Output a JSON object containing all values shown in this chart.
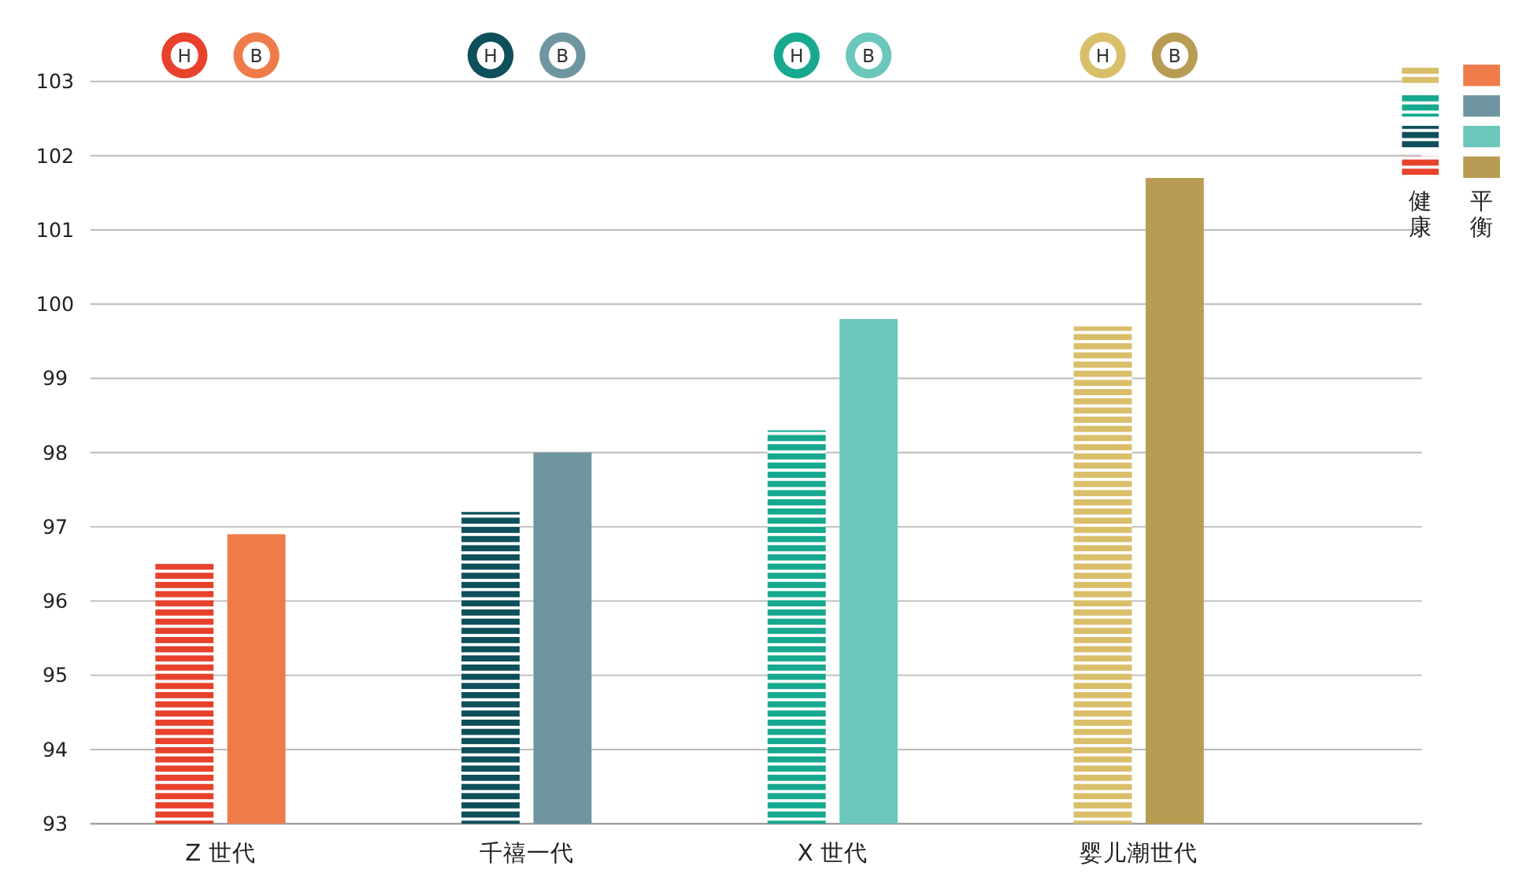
{
  "chart_data": {
    "type": "bar",
    "categories": [
      "Z 世代",
      "千禧一代",
      "X 世代",
      "婴儿潮世代"
    ],
    "series": [
      {
        "name": "健康",
        "colors": [
          "#e8412c",
          "#0d4f5a",
          "#17a98f",
          "#d9bf6a"
        ],
        "values": [
          96.5,
          97.2,
          98.3,
          99.7
        ]
      },
      {
        "name": "平衡",
        "colors": [
          "#f07b4a",
          "#6f96a0",
          "#6bc7bb",
          "#b99c53"
        ],
        "values": [
          96.9,
          98.0,
          99.8,
          101.7
        ]
      }
    ],
    "annotations": [
      "H",
      "B",
      "H",
      "B",
      "H",
      "B",
      "H",
      "B"
    ],
    "ylim": [
      93,
      103
    ],
    "yticks": [
      93,
      94,
      95,
      96,
      97,
      98,
      99,
      100,
      101,
      102,
      103
    ],
    "grid": "y",
    "legend": "right"
  }
}
